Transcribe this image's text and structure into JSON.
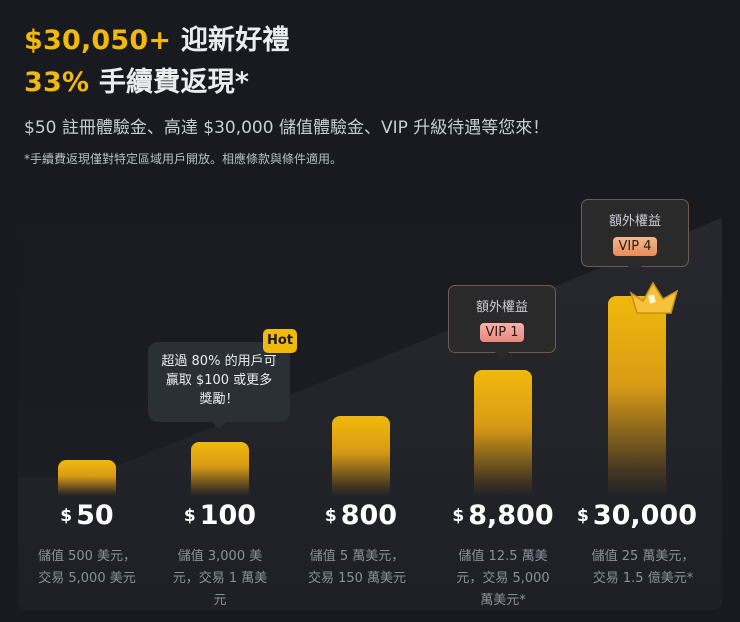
{
  "header": {
    "line1_accent": "$30,050+",
    "line1_text": "迎新好禮",
    "line2_accent": "33%",
    "line2_text": "手續費返現*",
    "subtitle": "$50 註冊體驗金、高達 $30,000 儲值體驗金、VIP 升級待遇等您來！",
    "disclaimer": "*手續費返現僅對特定區域用戶開放。相應條款與條件適用。"
  },
  "tiers": [
    {
      "currency": "$",
      "amount": "50",
      "desc_lines": [
        "儲值 500 美元，",
        "交易 5,000 美元"
      ]
    },
    {
      "currency": "$",
      "amount": "100",
      "desc_lines": [
        "儲值 3,000 美",
        "元，交易 1 萬美",
        "元"
      ]
    },
    {
      "currency": "$",
      "amount": "800",
      "desc_lines": [
        "儲值 5 萬美元，",
        "交易 150 萬美元"
      ]
    },
    {
      "currency": "$",
      "amount": "8,800",
      "desc_lines": [
        "儲值 12.5 萬美",
        "元，交易 5,000",
        "萬美元*"
      ]
    },
    {
      "currency": "$",
      "amount": "30,000",
      "desc_lines": [
        "儲值 25 萬美元，",
        "交易 1.5 億美元*"
      ]
    }
  ],
  "hot_bubble": {
    "badge": "Hot",
    "lines": [
      "超過 80% 的用戶可",
      "贏取 $100 或更多",
      "獎勵！"
    ]
  },
  "vip_callouts": [
    {
      "label": "額外權益",
      "tag": "VIP 1"
    },
    {
      "label": "額外權益",
      "tag": "VIP 4"
    }
  ],
  "colors": {
    "accent": "#f0b90b",
    "background": "#181a20",
    "muted_text": "#8a909a"
  },
  "icons": {
    "crown": "crown-icon"
  }
}
